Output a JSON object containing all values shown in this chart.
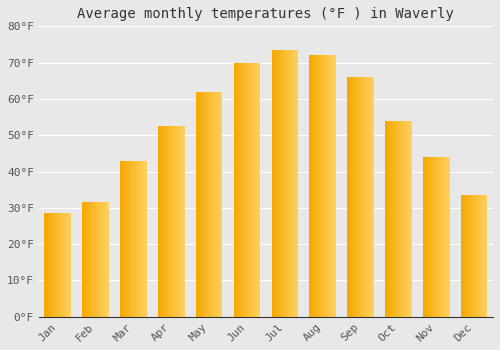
{
  "months": [
    "Jan",
    "Feb",
    "Mar",
    "Apr",
    "May",
    "Jun",
    "Jul",
    "Aug",
    "Sep",
    "Oct",
    "Nov",
    "Dec"
  ],
  "values": [
    28.5,
    31.5,
    43,
    52.5,
    62,
    70,
    73.5,
    72,
    66,
    54,
    44,
    33.5
  ],
  "bar_color_left": "#F5A800",
  "bar_color_right": "#FFD060",
  "title": "Average monthly temperatures (°F ) in Waverly",
  "ylim": [
    0,
    80
  ],
  "yticks": [
    0,
    10,
    20,
    30,
    40,
    50,
    60,
    70,
    80
  ],
  "ytick_labels": [
    "0°F",
    "10°F",
    "20°F",
    "30°F",
    "40°F",
    "50°F",
    "60°F",
    "70°F",
    "80°F"
  ],
  "background_color": "#e8e8e8",
  "plot_bg_color": "#e8e8e8",
  "grid_color": "#ffffff",
  "title_fontsize": 10,
  "tick_fontsize": 8,
  "tick_color": "#555555",
  "bar_width": 0.7
}
